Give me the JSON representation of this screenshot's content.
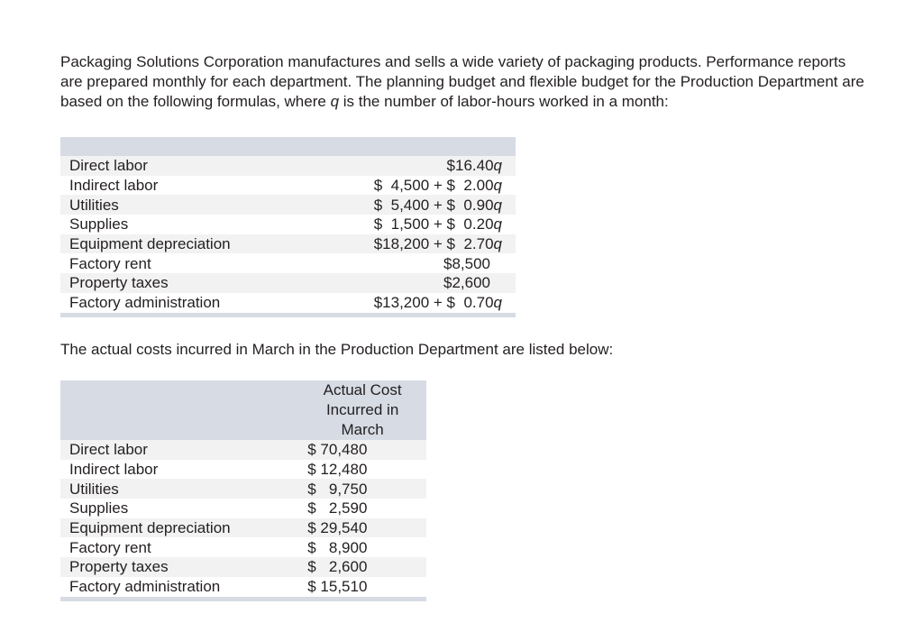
{
  "intro": {
    "text_before_q": "Packaging Solutions Corporation manufactures and sells a wide variety of packaging products. Performance reports are prepared monthly for each department. The planning budget and flexible budget for the Production Department are based on the following formulas, where ",
    "q": "q",
    "text_after_q": " is the number of labor-hours worked in a month:"
  },
  "formulas": [
    {
      "label": "Direct labor",
      "formula": "$16.40",
      "var": "q"
    },
    {
      "label": "Indirect labor",
      "formula": "$  4,500 + $  2.00",
      "var": "q"
    },
    {
      "label": "Utilities",
      "formula": "$  5,400 + $  0.90",
      "var": "q"
    },
    {
      "label": "Supplies",
      "formula": "$  1,500 + $  0.20",
      "var": "q"
    },
    {
      "label": "Equipment depreciation",
      "formula": "$18,200 + $  2.70",
      "var": "q"
    },
    {
      "label": "Factory rent",
      "formula": "$8,500",
      "var": ""
    },
    {
      "label": "Property taxes",
      "formula": "$2,600",
      "var": ""
    },
    {
      "label": "Factory administration",
      "formula": "$13,200 + $  0.70",
      "var": "q"
    }
  ],
  "actual_intro": "The actual costs incurred in March in the Production Department are listed below:",
  "actual_header": [
    "Actual Cost",
    "Incurred in",
    "March"
  ],
  "actual": [
    {
      "label": "Direct labor",
      "value": "$ 70,480"
    },
    {
      "label": "Indirect labor",
      "value": "$ 12,480"
    },
    {
      "label": "Utilities",
      "value": "$   9,750"
    },
    {
      "label": "Supplies",
      "value": "$   2,590"
    },
    {
      "label": "Equipment depreciation",
      "value": "$ 29,540"
    },
    {
      "label": "Factory rent",
      "value": "$   8,900"
    },
    {
      "label": "Property taxes",
      "value": "$   2,600"
    },
    {
      "label": "Factory administration",
      "value": "$ 15,510"
    }
  ]
}
